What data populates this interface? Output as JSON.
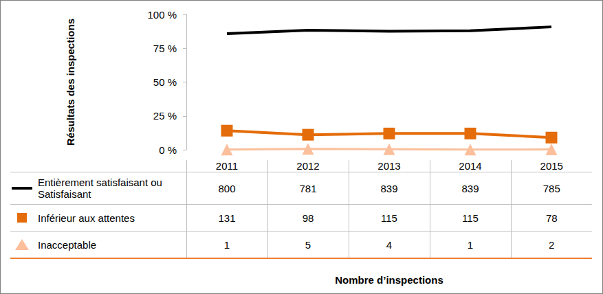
{
  "chart_data": {
    "type": "line",
    "ylabel": "Résultats des inspections",
    "xlabel": "Nombre d’inspections",
    "categories": [
      "2011",
      "2012",
      "2013",
      "2014",
      "2015"
    ],
    "ylim": [
      0,
      100
    ],
    "yticks": [
      {
        "value": 0,
        "label": "0 %"
      },
      {
        "value": 25,
        "label": "25 %"
      },
      {
        "value": 50,
        "label": "50 %"
      },
      {
        "value": 75,
        "label": "75 %"
      },
      {
        "value": 100,
        "label": "100 %"
      }
    ],
    "grid": false,
    "tick_labels": "y",
    "series": [
      {
        "name": "Entièrement satisfaisant ou Satisfaisant",
        "color": "#000000",
        "marker": "none",
        "values": [
          85.8,
          88.3,
          87.6,
          87.9,
          90.8
        ],
        "counts": [
          800,
          781,
          839,
          839,
          785
        ]
      },
      {
        "name": "Inférieur aux attentes",
        "color": "#e46c0a",
        "marker": "square",
        "values": [
          14.1,
          11.1,
          12.0,
          12.0,
          9.0
        ],
        "counts": [
          131,
          98,
          115,
          115,
          78
        ]
      },
      {
        "name": "Inacceptable",
        "color": "#fbbf9c",
        "marker": "triangle",
        "values": [
          0.1,
          0.6,
          0.4,
          0.1,
          0.2
        ],
        "counts": [
          1,
          5,
          4,
          1,
          2
        ]
      }
    ]
  }
}
